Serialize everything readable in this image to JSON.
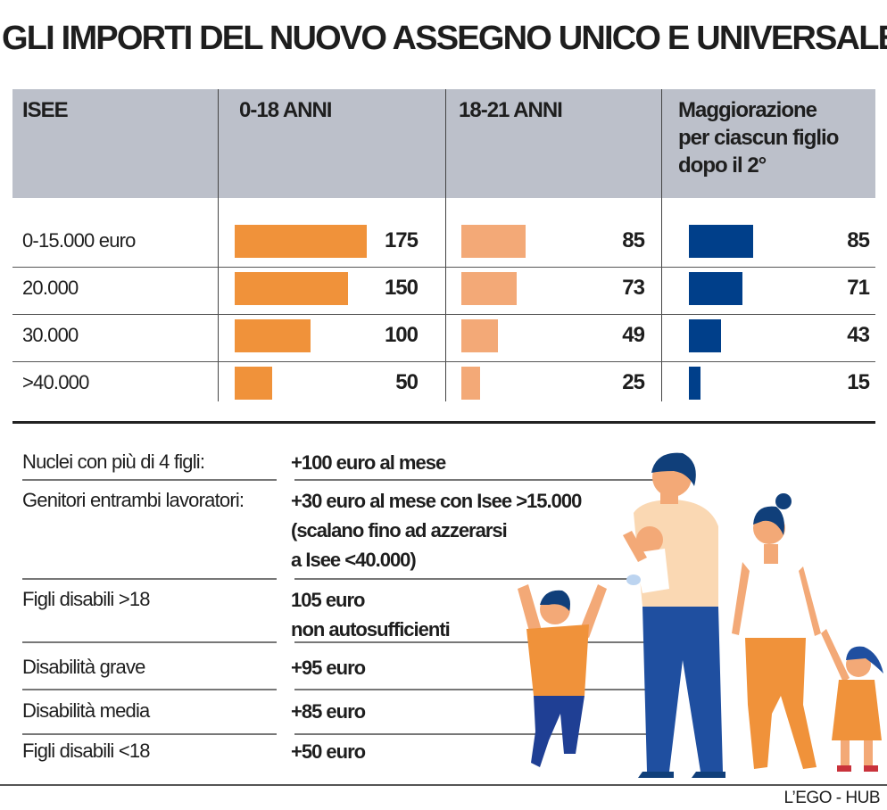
{
  "title": "GLI IMPORTI DEL NUOVO ASSEGNO UNICO E UNIVERSALE",
  "colors": {
    "col_0_18": "#f0923a",
    "col_18_21": "#f3a977",
    "col_maggiorazione": "#003f8a",
    "header_bg": "#bcc0ca"
  },
  "chart_data": {
    "type": "table",
    "title": "GLI IMPORTI DEL NUOVO ASSEGNO UNICO E UNIVERSALE",
    "row_header": "ISEE",
    "categories": [
      "0-15.000 euro",
      "20.000",
      "30.000",
      ">40.000"
    ],
    "series": [
      {
        "name": "0-18 ANNI",
        "values": [
          175,
          150,
          100,
          50
        ]
      },
      {
        "name": "18-21 ANNI",
        "values": [
          85,
          73,
          49,
          25
        ]
      },
      {
        "name": "Maggiorazione per ciascun figlio dopo il 2°",
        "values": [
          85,
          71,
          43,
          15
        ]
      }
    ]
  },
  "header": {
    "isee": "ISEE",
    "col1": "0-18 ANNI",
    "col2": "18-21 ANNI",
    "col3_lines": [
      "Maggiorazione",
      "per ciascun figlio",
      "dopo il 2°"
    ]
  },
  "extras": [
    {
      "label": "Nuclei con più di 4 figli:",
      "value_lines": [
        "+100 euro al mese"
      ]
    },
    {
      "label": "Genitori entrambi lavoratori:",
      "value_lines": [
        "+30 euro al mese con Isee >15.000",
        "(scalano fino ad azzerarsi",
        "a Isee <40.000)"
      ]
    },
    {
      "label": "Figli disabili >18",
      "value_lines": [
        "105 euro",
        "non autosufficienti"
      ]
    },
    {
      "label": "Disabilità grave",
      "value_lines": [
        "+95 euro"
      ]
    },
    {
      "label": "Disabilità media",
      "value_lines": [
        "+85 euro"
      ]
    },
    {
      "label": "Figli disabili <18",
      "value_lines": [
        "+50 euro"
      ]
    }
  ],
  "illustration": "family-illustration",
  "credit": "L’EGO - HUB"
}
